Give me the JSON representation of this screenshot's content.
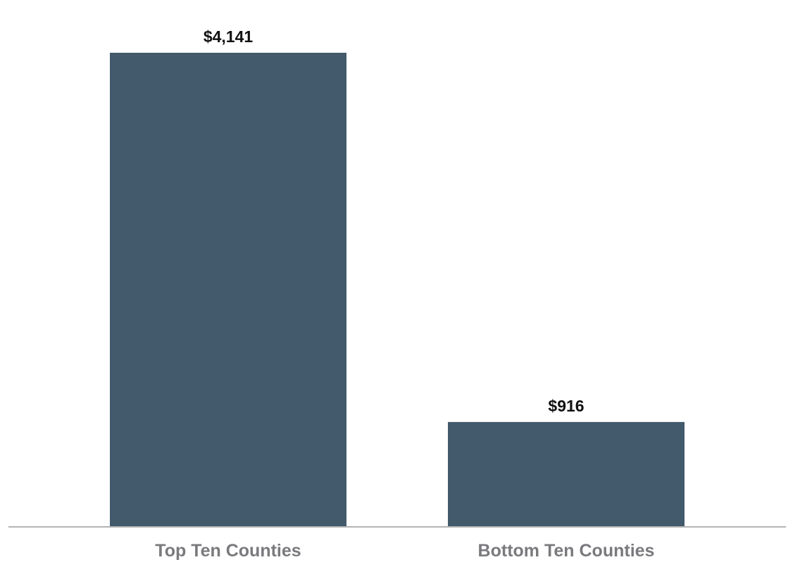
{
  "chart_data": {
    "type": "bar",
    "categories": [
      "Top Ten Counties",
      "Bottom Ten Counties"
    ],
    "values": [
      4141,
      916
    ],
    "value_labels": [
      "$4,141",
      "$916"
    ],
    "title": "",
    "xlabel": "",
    "ylabel": "",
    "ylim": [
      0,
      4500
    ],
    "grid": false,
    "legend": "none",
    "colors": {
      "bar": "#425a6b",
      "axis": "#b3b3b3",
      "value_text": "#111111",
      "category_text": "#7a7a7e"
    }
  }
}
